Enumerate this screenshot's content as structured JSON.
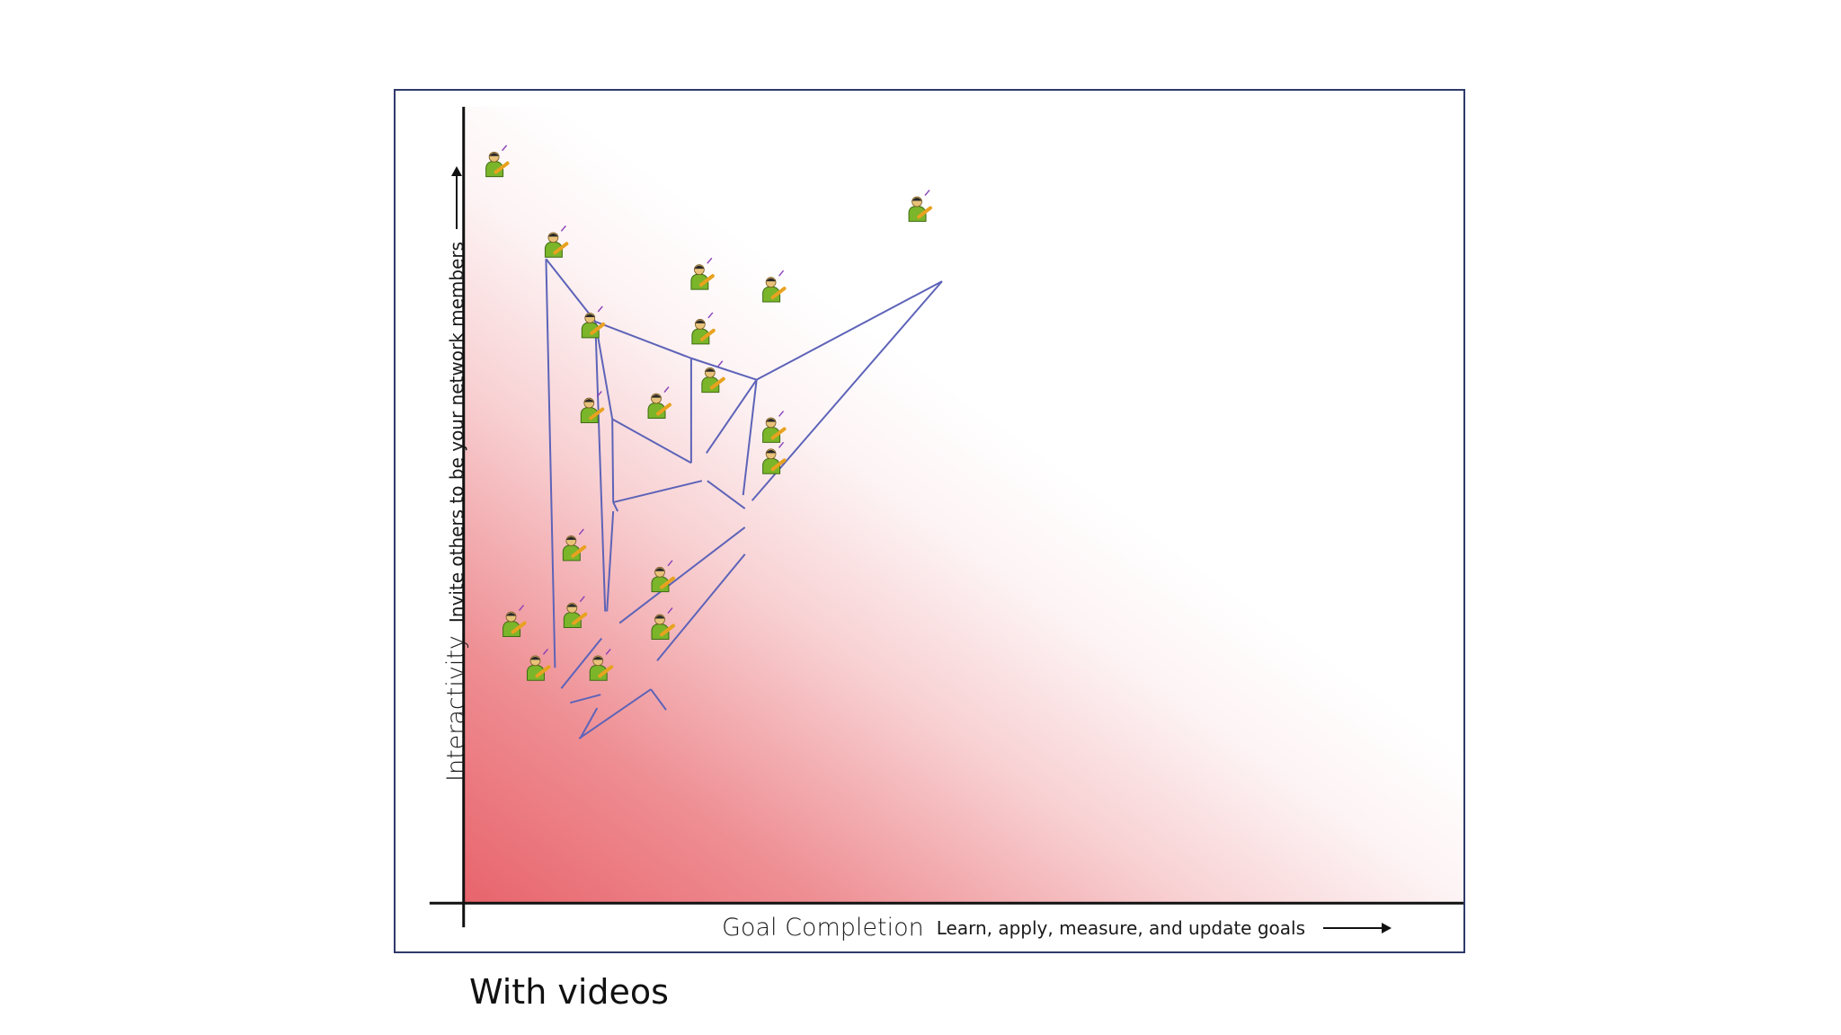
{
  "figure": {
    "y_axis": {
      "title": "Interactivity",
      "subtitle": "Invite others to be your network members"
    },
    "x_axis": {
      "title": "Goal Completion",
      "subtitle": "Learn, apply, measure, and update goals"
    },
    "background_gradient": {
      "from": "#e8646c",
      "to": "#ffffff"
    },
    "edge_color": "#5d63b8",
    "node_icon": "green-person-with-pencil-icon",
    "node_colors": {
      "body": "#7ab52a",
      "head": "#e9c27a",
      "pencil": "#e8a21f"
    }
  },
  "caption": "With videos"
}
